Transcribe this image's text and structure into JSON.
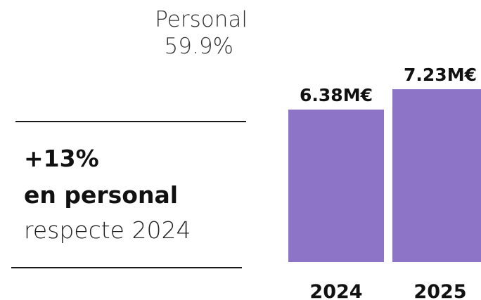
{
  "category": {
    "label": "Personal",
    "share": "59.9%"
  },
  "summary": {
    "change": "+13%",
    "subject": "en personal",
    "comparison": "respecte 2024"
  },
  "chart_data": {
    "type": "bar",
    "categories": [
      "2024",
      "2025"
    ],
    "values": [
      6.38,
      7.23
    ],
    "value_labels": [
      "6.38M€",
      "7.23M€"
    ],
    "unit": "M€",
    "title": "",
    "xlabel": "",
    "ylabel": "",
    "ylim": [
      0,
      7.23
    ],
    "grid": false,
    "colors": {
      "bar": "#8e74c6",
      "text": "#111111"
    }
  }
}
